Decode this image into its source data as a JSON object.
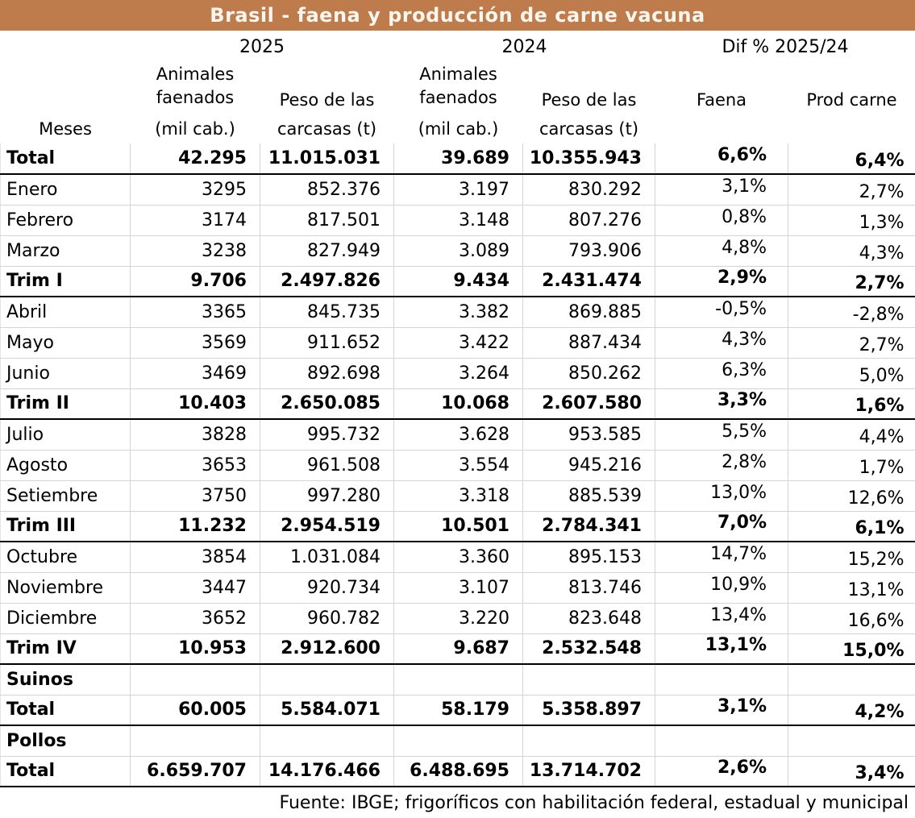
{
  "title": "Brasil - faena y producción de carne vacuna",
  "colors": {
    "title_bg": "#BE7C4D",
    "title_text": "#FDF6EE",
    "grid_line": "#D4D4D4",
    "section_line": "#000000"
  },
  "header": {
    "year_left": "2025",
    "year_right": "2024",
    "dif_label": "Dif % 2025/24",
    "meses": "Meses",
    "animales_line1": "Animales",
    "animales_line2": "faenados",
    "mil_cab": "(mil cab.)",
    "peso_line1": "Peso de las",
    "peso_line2": "carcasas (t)",
    "faena": "Faena",
    "prod_carne": "Prod carne"
  },
  "rows": [
    {
      "label": "Total",
      "a25": "42.295",
      "p25": "11.015.031",
      "a24": "39.689",
      "p24": "10.355.943",
      "faena": "6,6%",
      "prod": "6,4%",
      "bold": true,
      "section_end": true
    },
    {
      "label": "Enero",
      "a25": "3295",
      "p25": "852.376",
      "a24": "3.197",
      "p24": "830.292",
      "faena": "3,1%",
      "prod": "2,7%",
      "bold": false,
      "section_end": false
    },
    {
      "label": "Febrero",
      "a25": "3174",
      "p25": "817.501",
      "a24": "3.148",
      "p24": "807.276",
      "faena": "0,8%",
      "prod": "1,3%",
      "bold": false,
      "section_end": false
    },
    {
      "label": "Marzo",
      "a25": "3238",
      "p25": "827.949",
      "a24": "3.089",
      "p24": "793.906",
      "faena": "4,8%",
      "prod": "4,3%",
      "bold": false,
      "section_end": false
    },
    {
      "label": "Trim I",
      "a25": "9.706",
      "p25": "2.497.826",
      "a24": "9.434",
      "p24": "2.431.474",
      "faena": "2,9%",
      "prod": "2,7%",
      "bold": true,
      "section_end": true
    },
    {
      "label": "Abril",
      "a25": "3365",
      "p25": "845.735",
      "a24": "3.382",
      "p24": "869.885",
      "faena": "-0,5%",
      "prod": "-2,8%",
      "bold": false,
      "section_end": false
    },
    {
      "label": "Mayo",
      "a25": "3569",
      "p25": "911.652",
      "a24": "3.422",
      "p24": "887.434",
      "faena": "4,3%",
      "prod": "2,7%",
      "bold": false,
      "section_end": false
    },
    {
      "label": "Junio",
      "a25": "3469",
      "p25": "892.698",
      "a24": "3.264",
      "p24": "850.262",
      "faena": "6,3%",
      "prod": "5,0%",
      "bold": false,
      "section_end": false
    },
    {
      "label": "Trim II",
      "a25": "10.403",
      "p25": "2.650.085",
      "a24": "10.068",
      "p24": "2.607.580",
      "faena": "3,3%",
      "prod": "1,6%",
      "bold": true,
      "section_end": true
    },
    {
      "label": "Julio",
      "a25": "3828",
      "p25": "995.732",
      "a24": "3.628",
      "p24": "953.585",
      "faena": "5,5%",
      "prod": "4,4%",
      "bold": false,
      "section_end": false
    },
    {
      "label": "Agosto",
      "a25": "3653",
      "p25": "961.508",
      "a24": "3.554",
      "p24": "945.216",
      "faena": "2,8%",
      "prod": "1,7%",
      "bold": false,
      "section_end": false
    },
    {
      "label": "Setiembre",
      "a25": "3750",
      "p25": "997.280",
      "a24": "3.318",
      "p24": "885.539",
      "faena": "13,0%",
      "prod": "12,6%",
      "bold": false,
      "section_end": false
    },
    {
      "label": "Trim III",
      "a25": "11.232",
      "p25": "2.954.519",
      "a24": "10.501",
      "p24": "2.784.341",
      "faena": "7,0%",
      "prod": "6,1%",
      "bold": true,
      "section_end": true
    },
    {
      "label": "Octubre",
      "a25": "3854",
      "p25": "1.031.084",
      "a24": "3.360",
      "p24": "895.153",
      "faena": "14,7%",
      "prod": "15,2%",
      "bold": false,
      "section_end": false
    },
    {
      "label": "Noviembre",
      "a25": "3447",
      "p25": "920.734",
      "a24": "3.107",
      "p24": "813.746",
      "faena": "10,9%",
      "prod": "13,1%",
      "bold": false,
      "section_end": false
    },
    {
      "label": "Diciembre",
      "a25": "3652",
      "p25": "960.782",
      "a24": "3.220",
      "p24": "823.648",
      "faena": "13,4%",
      "prod": "16,6%",
      "bold": false,
      "section_end": false
    },
    {
      "label": "Trim IV",
      "a25": "10.953",
      "p25": "2.912.600",
      "a24": "9.687",
      "p24": "2.532.548",
      "faena": "13,1%",
      "prod": "15,0%",
      "bold": true,
      "section_end": true
    },
    {
      "label": "Suinos",
      "a25": "",
      "p25": "",
      "a24": "",
      "p24": "",
      "faena": "",
      "prod": "",
      "bold": true,
      "section_end": false
    },
    {
      "label": "Total",
      "a25": "60.005",
      "p25": "5.584.071",
      "a24": "58.179",
      "p24": "5.358.897",
      "faena": "3,1%",
      "prod": "4,2%",
      "bold": true,
      "section_end": true
    },
    {
      "label": "Pollos",
      "a25": "",
      "p25": "",
      "a24": "",
      "p24": "",
      "faena": "",
      "prod": "",
      "bold": true,
      "section_end": false
    },
    {
      "label": "Total",
      "a25": "6.659.707",
      "p25": "14.176.466",
      "a24": "6.488.695",
      "p24": "13.714.702",
      "faena": "2,6%",
      "prod": "3,4%",
      "bold": true,
      "section_end": true
    }
  ],
  "footer": "Fuente: IBGE; frigoríficos con habilitación federal, estadual y municipal"
}
